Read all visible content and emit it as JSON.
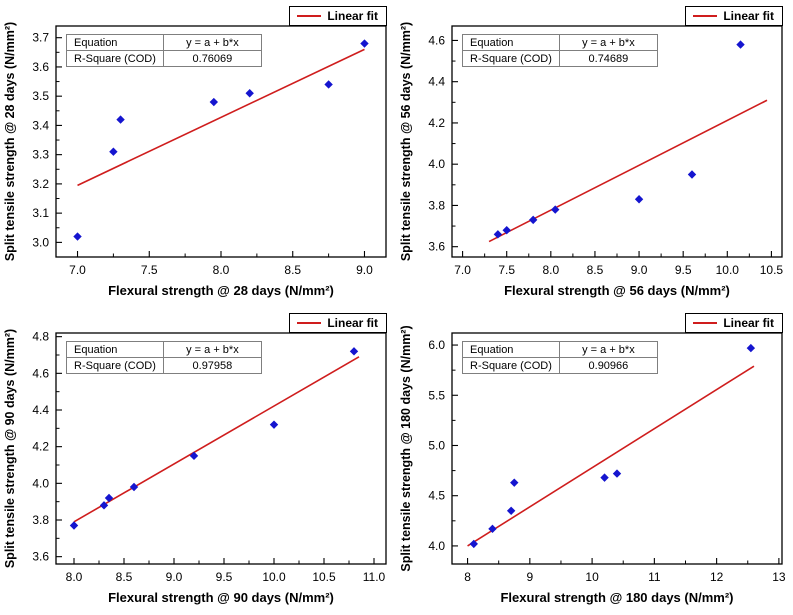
{
  "figure": {
    "background": "#ffffff"
  },
  "colors": {
    "point": "#1515cf",
    "fit_line": "#cf1d1d",
    "axis": "#000000",
    "table_border": "#7f7f7f"
  },
  "chart_data": [
    {
      "type": "scatter",
      "panel": "28-days",
      "title": "",
      "xlabel": "Flexural strength @ 28 days (N/mm²)",
      "ylabel": "Split tensile strength @ 28 days (N/mm²)",
      "xlim": [
        6.85,
        9.15
      ],
      "ylim": [
        2.95,
        3.74
      ],
      "xticks": [
        7.0,
        7.5,
        8.0,
        8.5,
        9.0
      ],
      "xtick_labels": [
        "7.0",
        "7.5",
        "8.0",
        "8.5",
        "9.0"
      ],
      "yticks": [
        3.0,
        3.1,
        3.2,
        3.3,
        3.4,
        3.5,
        3.6,
        3.7
      ],
      "ytick_labels": [
        "3.0",
        "3.1",
        "3.2",
        "3.3",
        "3.4",
        "3.5",
        "3.6",
        "3.7"
      ],
      "points": [
        [
          7.0,
          3.02
        ],
        [
          7.25,
          3.31
        ],
        [
          7.3,
          3.42
        ],
        [
          7.95,
          3.48
        ],
        [
          8.2,
          3.51
        ],
        [
          8.75,
          3.54
        ],
        [
          9.0,
          3.68
        ]
      ],
      "fit": {
        "x1": 7.0,
        "y1": 3.195,
        "x2": 9.0,
        "y2": 3.66
      },
      "grid": false,
      "legend_position": "top-right",
      "legend": "Linear fit",
      "table": {
        "equation_label": "Equation",
        "equation_value": "y = a + b*x",
        "r2_label": "R-Square (COD)",
        "r2_value": "0.76069"
      }
    },
    {
      "type": "scatter",
      "panel": "56-days",
      "title": "",
      "xlabel": "Flexural strength @ 56 days (N/mm²)",
      "ylabel": "Split tensile strength @ 56 days (N/mm²)",
      "xlim": [
        6.88,
        10.62
      ],
      "ylim": [
        3.55,
        4.67
      ],
      "xticks": [
        7.0,
        7.5,
        8.0,
        8.5,
        9.0,
        9.5,
        10.0,
        10.5
      ],
      "xtick_labels": [
        "7.0",
        "7.5",
        "8.0",
        "8.5",
        "9.0",
        "9.5",
        "10.0",
        "10.5"
      ],
      "yticks": [
        3.6,
        3.8,
        4.0,
        4.2,
        4.4,
        4.6
      ],
      "ytick_labels": [
        "3.6",
        "3.8",
        "4.0",
        "4.2",
        "4.4",
        "4.6"
      ],
      "points": [
        [
          7.4,
          3.66
        ],
        [
          7.5,
          3.68
        ],
        [
          7.8,
          3.73
        ],
        [
          8.05,
          3.78
        ],
        [
          9.0,
          3.83
        ],
        [
          9.6,
          3.95
        ],
        [
          10.15,
          4.58
        ]
      ],
      "fit": {
        "x1": 7.3,
        "y1": 3.625,
        "x2": 10.45,
        "y2": 4.31
      },
      "grid": false,
      "legend_position": "top-right",
      "legend": "Linear fit",
      "table": {
        "equation_label": "Equation",
        "equation_value": "y = a + b*x",
        "r2_label": "R-Square (COD)",
        "r2_value": "0.74689"
      }
    },
    {
      "type": "scatter",
      "panel": "90-days",
      "title": "",
      "xlabel": "Flexural strength @ 90 days (N/mm²)",
      "ylabel": "Split tensile strength @ 90 days (N/mm²)",
      "xlim": [
        7.82,
        11.12
      ],
      "ylim": [
        3.56,
        4.82
      ],
      "xticks": [
        8.0,
        8.5,
        9.0,
        9.5,
        10.0,
        10.5,
        11.0
      ],
      "xtick_labels": [
        "8.0",
        "8.5",
        "9.0",
        "9.5",
        "10.0",
        "10.5",
        "11.0"
      ],
      "yticks": [
        3.6,
        3.8,
        4.0,
        4.2,
        4.4,
        4.6,
        4.8
      ],
      "ytick_labels": [
        "3.6",
        "3.8",
        "4.0",
        "4.2",
        "4.4",
        "4.6",
        "4.8"
      ],
      "points": [
        [
          8.0,
          3.77
        ],
        [
          8.3,
          3.88
        ],
        [
          8.35,
          3.92
        ],
        [
          8.6,
          3.98
        ],
        [
          9.2,
          4.15
        ],
        [
          10.0,
          4.32
        ],
        [
          10.8,
          4.72
        ]
      ],
      "fit": {
        "x1": 8.0,
        "y1": 3.79,
        "x2": 10.85,
        "y2": 4.69
      },
      "grid": false,
      "legend_position": "top-right",
      "legend": "Linear fit",
      "table": {
        "equation_label": "Equation",
        "equation_value": "y = a + b*x",
        "r2_label": "R-Square (COD)",
        "r2_value": "0.97958"
      }
    },
    {
      "type": "scatter",
      "panel": "180-days",
      "title": "",
      "xlabel": "Flexural strength @ 180 days (N/mm²)",
      "ylabel": "Split tensile strength @ 180 days (N/mm²)",
      "xlim": [
        7.75,
        13.05
      ],
      "ylim": [
        3.82,
        6.12
      ],
      "xticks": [
        8,
        9,
        10,
        11,
        12,
        13
      ],
      "xtick_labels": [
        "8",
        "9",
        "10",
        "11",
        "12",
        "13"
      ],
      "yticks": [
        4.0,
        4.5,
        5.0,
        5.5,
        6.0
      ],
      "ytick_labels": [
        "4.0",
        "4.5",
        "5.0",
        "5.5",
        "6.0"
      ],
      "points": [
        [
          8.1,
          4.02
        ],
        [
          8.4,
          4.17
        ],
        [
          8.7,
          4.35
        ],
        [
          8.75,
          4.63
        ],
        [
          10.2,
          4.68
        ],
        [
          10.4,
          4.72
        ],
        [
          12.55,
          5.97
        ]
      ],
      "fit": {
        "x1": 8.0,
        "y1": 4.0,
        "x2": 12.6,
        "y2": 5.79
      },
      "grid": false,
      "legend_position": "top-right",
      "legend": "Linear fit",
      "table": {
        "equation_label": "Equation",
        "equation_value": "y = a + b*x",
        "r2_label": "R-Square (COD)",
        "r2_value": "0.90966"
      }
    }
  ]
}
